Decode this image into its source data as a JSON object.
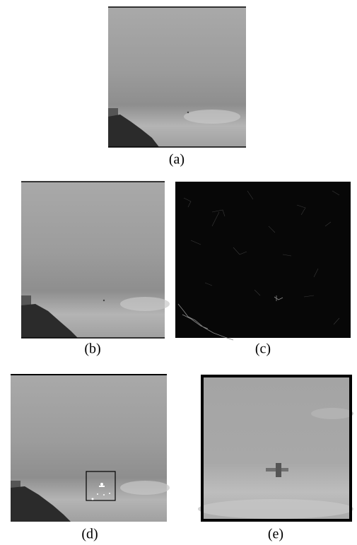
{
  "figure": {
    "panels": [
      {
        "caption": "(a)"
      },
      {
        "caption": "(b)"
      },
      {
        "caption": "(c)"
      },
      {
        "caption": "(d)"
      },
      {
        "caption": "(e)"
      }
    ]
  }
}
